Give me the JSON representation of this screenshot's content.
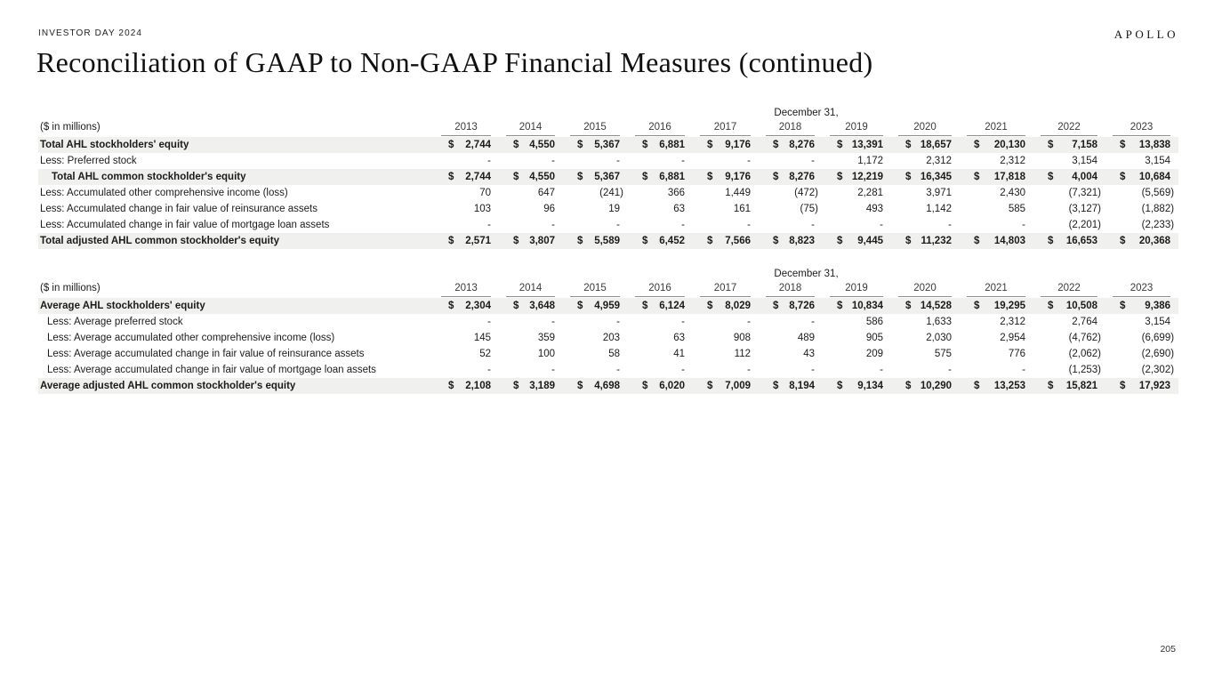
{
  "slide": {
    "eyebrow": "INVESTOR DAY 2024",
    "title": "Reconciliation of GAAP to Non-GAAP Financial Measures (continued)",
    "logo": "APOLLO",
    "page_number": "205"
  },
  "colors": {
    "band": "#f0f0ee",
    "rule": "#8f8f8f",
    "text": "#1b1b1b"
  },
  "tables": [
    {
      "group_header": "December 31,",
      "unit_label": "($ in millions)",
      "years": [
        "2013",
        "2014",
        "2015",
        "2016",
        "2017",
        "2018",
        "2019",
        "2020",
        "2021",
        "2022",
        "2023"
      ],
      "rows": [
        {
          "label": "Total AHL stockholders' equity",
          "bold": true,
          "shaded": true,
          "indent": 0,
          "dollar": true,
          "values": [
            "2,744",
            "4,550",
            "5,367",
            "6,881",
            "9,176",
            "8,276",
            "13,391",
            "18,657",
            "20,130",
            "7,158",
            "13,838"
          ]
        },
        {
          "label": "Less: Preferred stock",
          "bold": false,
          "shaded": false,
          "indent": 0,
          "dollar": false,
          "values": [
            "-",
            "-",
            "-",
            "-",
            "-",
            "-",
            "1,172",
            "2,312",
            "2,312",
            "3,154",
            "3,154"
          ]
        },
        {
          "label": "Total AHL common stockholder's equity",
          "bold": true,
          "shaded": true,
          "indent": 1,
          "dollar": true,
          "values": [
            "2,744",
            "4,550",
            "5,367",
            "6,881",
            "9,176",
            "8,276",
            "12,219",
            "16,345",
            "17,818",
            "4,004",
            "10,684"
          ]
        },
        {
          "label": "Less: Accumulated other comprehensive income (loss)",
          "bold": false,
          "shaded": false,
          "indent": 0,
          "dollar": false,
          "values": [
            "70",
            "647",
            "(241)",
            "366",
            "1,449",
            "(472)",
            "2,281",
            "3,971",
            "2,430",
            "(7,321)",
            "(5,569)"
          ]
        },
        {
          "label": "Less: Accumulated change in fair value of reinsurance assets",
          "bold": false,
          "shaded": false,
          "indent": 0,
          "dollar": false,
          "values": [
            "103",
            "96",
            "19",
            "63",
            "161",
            "(75)",
            "493",
            "1,142",
            "585",
            "(3,127)",
            "(1,882)"
          ]
        },
        {
          "label": "Less: Accumulated change in fair value of mortgage loan assets",
          "bold": false,
          "shaded": false,
          "indent": 0,
          "dollar": false,
          "values": [
            "-",
            "-",
            "-",
            "-",
            "-",
            "-",
            "-",
            "-",
            "-",
            "(2,201)",
            "(2,233)"
          ]
        },
        {
          "label": "Total adjusted AHL common stockholder's equity",
          "bold": true,
          "shaded": true,
          "indent": 0,
          "dollar": true,
          "values": [
            "2,571",
            "3,807",
            "5,589",
            "6,452",
            "7,566",
            "8,823",
            "9,445",
            "11,232",
            "14,803",
            "16,653",
            "20,368"
          ]
        }
      ]
    },
    {
      "group_header": "December 31,",
      "unit_label": "($ in millions)",
      "years": [
        "2013",
        "2014",
        "2015",
        "2016",
        "2017",
        "2018",
        "2019",
        "2020",
        "2021",
        "2022",
        "2023"
      ],
      "rows": [
        {
          "label": "Average AHL stockholders' equity",
          "bold": true,
          "shaded": true,
          "indent": 0,
          "dollar": true,
          "values": [
            "2,304",
            "3,648",
            "4,959",
            "6,124",
            "8,029",
            "8,726",
            "10,834",
            "14,528",
            "19,295",
            "10,508",
            "9,386"
          ]
        },
        {
          "label": "Less: Average preferred stock",
          "bold": false,
          "shaded": false,
          "indent": 2,
          "dollar": false,
          "values": [
            "-",
            "-",
            "-",
            "-",
            "-",
            "-",
            "586",
            "1,633",
            "2,312",
            "2,764",
            "3,154"
          ]
        },
        {
          "label": "Less: Average accumulated other comprehensive income (loss)",
          "bold": false,
          "shaded": false,
          "indent": 2,
          "dollar": false,
          "values": [
            "145",
            "359",
            "203",
            "63",
            "908",
            "489",
            "905",
            "2,030",
            "2,954",
            "(4,762)",
            "(6,699)"
          ]
        },
        {
          "label": "Less: Average accumulated change in fair value of reinsurance assets",
          "bold": false,
          "shaded": false,
          "indent": 2,
          "dollar": false,
          "values": [
            "52",
            "100",
            "58",
            "41",
            "112",
            "43",
            "209",
            "575",
            "776",
            "(2,062)",
            "(2,690)"
          ]
        },
        {
          "label": "Less: Average accumulated change in fair value of mortgage loan assets",
          "bold": false,
          "shaded": false,
          "indent": 2,
          "dollar": false,
          "values": [
            "-",
            "-",
            "-",
            "-",
            "-",
            "-",
            "-",
            "-",
            "-",
            "(1,253)",
            "(2,302)"
          ]
        },
        {
          "label": "Average adjusted AHL common stockholder's equity",
          "bold": true,
          "shaded": true,
          "indent": 0,
          "dollar": true,
          "values": [
            "2,108",
            "3,189",
            "4,698",
            "6,020",
            "7,009",
            "8,194",
            "9,134",
            "10,290",
            "13,253",
            "15,821",
            "17,923"
          ]
        }
      ]
    }
  ]
}
